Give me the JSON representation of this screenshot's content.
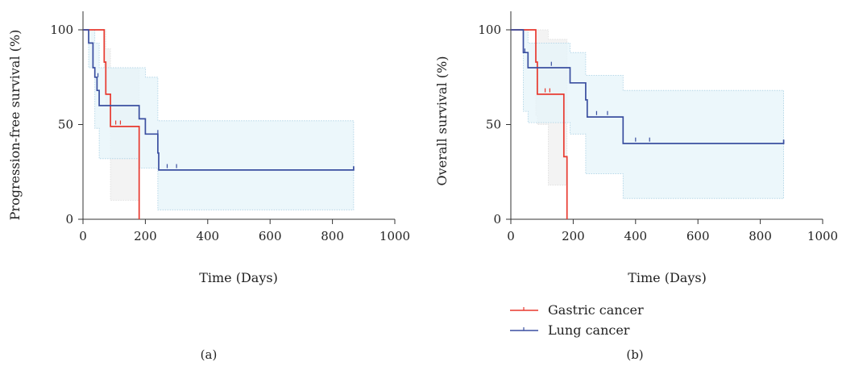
{
  "colors": {
    "gastric": "#e8392f",
    "lung": "#3a4fa0",
    "axis": "#333333",
    "ci_gastric": "#f2f2f2",
    "ci_lung": "#e6f4fa",
    "ci_border": "#a8cfe3"
  },
  "legend": {
    "items": [
      {
        "label": "Gastric cancer",
        "color": "#e8392f"
      },
      {
        "label": "Lung cancer",
        "color": "#3a4fa0"
      }
    ]
  },
  "chart_data": [
    {
      "type": "line",
      "panel_label": "(a)",
      "xlabel": "Time (Days)",
      "ylabel": "Progression-free survival (%)",
      "xlim": [
        0,
        1000
      ],
      "ylim": [
        0,
        100
      ],
      "xticks": [
        "0",
        "200",
        "400",
        "600",
        "800",
        "1000"
      ],
      "yticks": [
        "0",
        "50",
        "100"
      ],
      "series": [
        {
          "name": "Gastric cancer",
          "color": "#e8392f",
          "steps": [
            [
              0,
              100
            ],
            [
              68,
              100
            ],
            [
              68,
              83
            ],
            [
              73,
              83
            ],
            [
              73,
              66
            ],
            [
              88,
              66
            ],
            [
              88,
              49
            ],
            [
              180,
              49
            ],
            [
              180,
              0
            ]
          ],
          "censors": [
            [
              105,
              50
            ],
            [
              120,
              50
            ]
          ],
          "ci": [
            [
              0,
              100,
              100
            ],
            [
              68,
              80,
              100
            ],
            [
              73,
              60,
              90
            ],
            [
              88,
              10,
              80
            ],
            [
              180,
              10,
              80
            ]
          ]
        },
        {
          "name": "Lung cancer",
          "color": "#3a4fa0",
          "steps": [
            [
              0,
              100
            ],
            [
              18,
              100
            ],
            [
              18,
              93
            ],
            [
              32,
              93
            ],
            [
              32,
              80
            ],
            [
              38,
              80
            ],
            [
              38,
              75
            ],
            [
              45,
              75
            ],
            [
              45,
              68
            ],
            [
              52,
              68
            ],
            [
              52,
              60
            ],
            [
              180,
              60
            ],
            [
              180,
              53
            ],
            [
              200,
              53
            ],
            [
              200,
              45
            ],
            [
              240,
              45
            ],
            [
              240,
              35
            ],
            [
              243,
              35
            ],
            [
              243,
              26
            ],
            [
              868,
              26
            ],
            [
              868,
              28
            ]
          ],
          "censors": [
            [
              48,
              75
            ],
            [
              240,
              45
            ],
            [
              270,
              27
            ],
            [
              300,
              27
            ]
          ],
          "ci": [
            [
              0,
              100,
              100
            ],
            [
              18,
              80,
              100
            ],
            [
              38,
              48,
              93
            ],
            [
              52,
              32,
              80
            ],
            [
              180,
              27,
              80
            ],
            [
              200,
              27,
              75
            ],
            [
              240,
              5,
              52
            ],
            [
              868,
              5,
              52
            ]
          ]
        }
      ]
    },
    {
      "type": "line",
      "panel_label": "(b)",
      "xlabel": "Time (Days)",
      "ylabel": "Overall survival (%)",
      "xlim": [
        0,
        1000
      ],
      "ylim": [
        0,
        100
      ],
      "xticks": [
        "0",
        "200",
        "400",
        "600",
        "800",
        "1000"
      ],
      "yticks": [
        "0",
        "50",
        "100"
      ],
      "series": [
        {
          "name": "Gastric cancer",
          "color": "#e8392f",
          "steps": [
            [
              0,
              100
            ],
            [
              80,
              100
            ],
            [
              80,
              83
            ],
            [
              85,
              83
            ],
            [
              85,
              66
            ],
            [
              170,
              66
            ],
            [
              170,
              33
            ],
            [
              180,
              33
            ],
            [
              180,
              0
            ]
          ],
          "censors": [
            [
              110,
              67
            ],
            [
              125,
              67
            ]
          ],
          "ci": [
            [
              0,
              100,
              100
            ],
            [
              80,
              55,
              100
            ],
            [
              85,
              50,
              100
            ],
            [
              120,
              18,
              95
            ],
            [
              180,
              18,
              95
            ]
          ]
        },
        {
          "name": "Lung cancer",
          "color": "#3a4fa0",
          "steps": [
            [
              0,
              100
            ],
            [
              40,
              100
            ],
            [
              40,
              88
            ],
            [
              55,
              88
            ],
            [
              55,
              80
            ],
            [
              190,
              80
            ],
            [
              190,
              72
            ],
            [
              240,
              72
            ],
            [
              240,
              63
            ],
            [
              245,
              63
            ],
            [
              245,
              54
            ],
            [
              360,
              54
            ],
            [
              360,
              40
            ],
            [
              875,
              40
            ],
            [
              875,
              42
            ]
          ],
          "censors": [
            [
              45,
              88
            ],
            [
              130,
              81
            ],
            [
              275,
              55
            ],
            [
              310,
              55
            ],
            [
              400,
              41
            ],
            [
              445,
              41
            ]
          ],
          "ci": [
            [
              0,
              100,
              100
            ],
            [
              40,
              57,
              100
            ],
            [
              55,
              51,
              93
            ],
            [
              190,
              45,
              88
            ],
            [
              240,
              24,
              76
            ],
            [
              360,
              11,
              68
            ],
            [
              875,
              11,
              68
            ]
          ]
        }
      ]
    }
  ]
}
